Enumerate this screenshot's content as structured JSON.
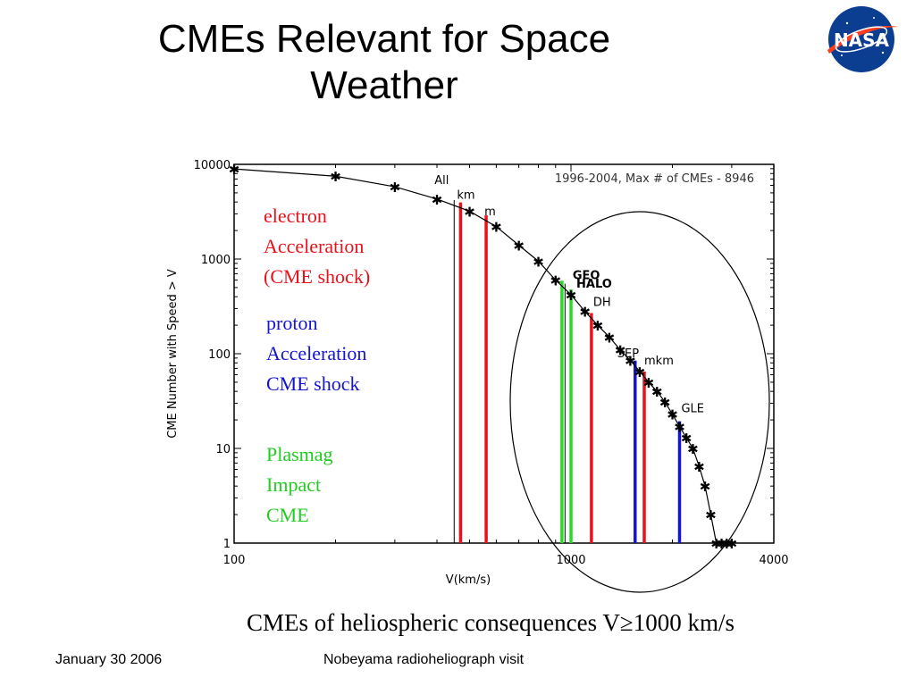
{
  "slide": {
    "title": "CMEs Relevant for Space Weather",
    "caption": "CMEs of heliospheric consequences V≥1000 km/s",
    "footer_left": "January 30 2006",
    "footer_center": "Nobeyama radioheliograph visit",
    "logo_text": "NASA"
  },
  "labels": {
    "electron": [
      "electron",
      "Acceleration",
      "(CME shock)"
    ],
    "proton": [
      "proton",
      "Acceleration",
      "CME shock"
    ],
    "plasmag": [
      "Plasmag",
      "Impact",
      "CME"
    ]
  },
  "colors": {
    "electron": "#e8121b",
    "proton": "#1414d2",
    "plasmag": "#22dd22",
    "curve": "#000000"
  },
  "chart_data": {
    "type": "line",
    "title": "1996-2004, Max # of CMEs - 8946",
    "xlabel": "V(km/s)",
    "ylabel": "CME Number with Speed > V",
    "xscale": "log",
    "yscale": "log",
    "xlim": [
      100,
      4000
    ],
    "ylim": [
      1,
      10000
    ],
    "xticks": [
      "100",
      "1000",
      "4000"
    ],
    "yticks": [
      "1",
      "10",
      "100",
      "1000",
      "10000"
    ],
    "series": [
      {
        "x": [
          100,
          200,
          300,
          400,
          500,
          600,
          700,
          800,
          900,
          1000,
          1100,
          1200,
          1300,
          1400,
          1500,
          1600,
          1700,
          1800,
          1900,
          2000,
          2100,
          2200,
          2300,
          2400,
          2500,
          2600,
          2700,
          2800,
          2900,
          3000
        ],
        "y": [
          8946,
          7500,
          5800,
          4300,
          3200,
          2200,
          1400,
          950,
          600,
          420,
          280,
          200,
          150,
          110,
          85,
          65,
          50,
          40,
          31,
          23,
          17,
          13,
          10,
          6.5,
          4,
          2,
          1,
          1,
          1,
          1
        ]
      }
    ],
    "threshold_lines": [
      {
        "label": "All",
        "x": 450,
        "color": "#000000"
      },
      {
        "label": "km",
        "x": 470,
        "color": "#e8121b"
      },
      {
        "label": "m",
        "x": 560,
        "color": "#e8121b"
      },
      {
        "label": "GEO",
        "x": 940,
        "color": "#22dd22"
      },
      {
        "label": "",
        "x": 960,
        "color": "#000000"
      },
      {
        "label": "HALO",
        "x": 1000,
        "color": "#22dd22"
      },
      {
        "label": "DH",
        "x": 1150,
        "color": "#e8121b"
      },
      {
        "label": "SEP",
        "x": 1550,
        "color": "#1414d2"
      },
      {
        "label": "mkm",
        "x": 1650,
        "color": "#e8121b"
      },
      {
        "label": "GLE",
        "x": 2100,
        "color": "#1414d2"
      }
    ],
    "annotation": "ellipse around V ≥ 1000 km/s"
  }
}
